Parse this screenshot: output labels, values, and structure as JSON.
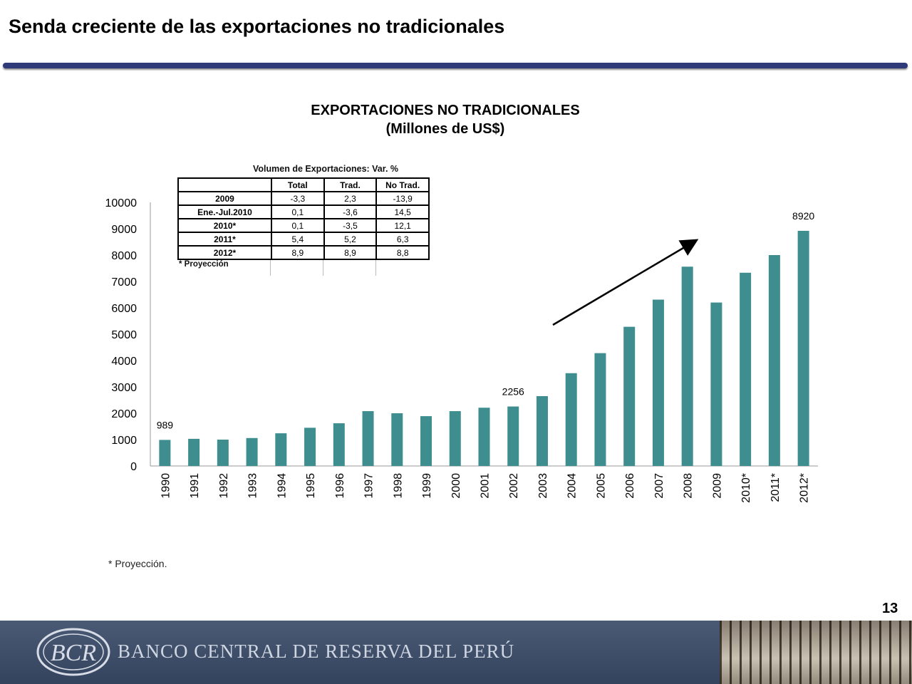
{
  "slide": {
    "title": "Senda creciente de las exportaciones no tradicionales",
    "page_number": "13",
    "footnote": "* Proyección."
  },
  "chart_data": {
    "type": "bar",
    "title": "EXPORTACIONES NO TRADICIONALES",
    "subtitle": "(Millones de US$)",
    "categories": [
      "1990",
      "1991",
      "1992",
      "1993",
      "1994",
      "1995",
      "1996",
      "1997",
      "1998",
      "1999",
      "2000",
      "2001",
      "2002",
      "2003",
      "2004",
      "2005",
      "2006",
      "2007",
      "2008",
      "2009",
      "2010*",
      "2011*",
      "2012*"
    ],
    "values": [
      989,
      1030,
      1000,
      1060,
      1240,
      1450,
      1620,
      2080,
      2000,
      1890,
      2080,
      2210,
      2256,
      2650,
      3520,
      4280,
      5280,
      6310,
      7560,
      6200,
      7330,
      8000,
      8920
    ],
    "data_labels": {
      "0": "989",
      "12": "2256",
      "22": "8920"
    },
    "ylim": [
      0,
      10000
    ],
    "yticks": [
      0,
      1000,
      2000,
      3000,
      4000,
      5000,
      6000,
      7000,
      8000,
      9000,
      10000
    ],
    "bar_color": "#3e8e90",
    "grid": false,
    "annotation": "trend-arrow"
  },
  "inset_table": {
    "caption": "Volumen de Exportaciones: Var. %",
    "headers": [
      "Total",
      "Trad.",
      "No Trad."
    ],
    "rows": [
      {
        "label": "2009",
        "values": [
          "-3,3",
          "2,3",
          "-13,9"
        ]
      },
      {
        "label": "Ene.-Jul.2010",
        "values": [
          "0,1",
          "-3,6",
          "14,5"
        ]
      },
      {
        "label": "2010*",
        "values": [
          "0,1",
          "-3,5",
          "12,1"
        ]
      },
      {
        "label": "2011*",
        "values": [
          "5,4",
          "5,2",
          "6,3"
        ]
      },
      {
        "label": "2012*",
        "values": [
          "8,9",
          "8,9",
          "8,8"
        ]
      }
    ],
    "note": "* Proyección"
  },
  "footer": {
    "bank_name": "BANCO CENTRAL DE RESERVA DEL PERÚ",
    "logo_text": "BCR"
  }
}
